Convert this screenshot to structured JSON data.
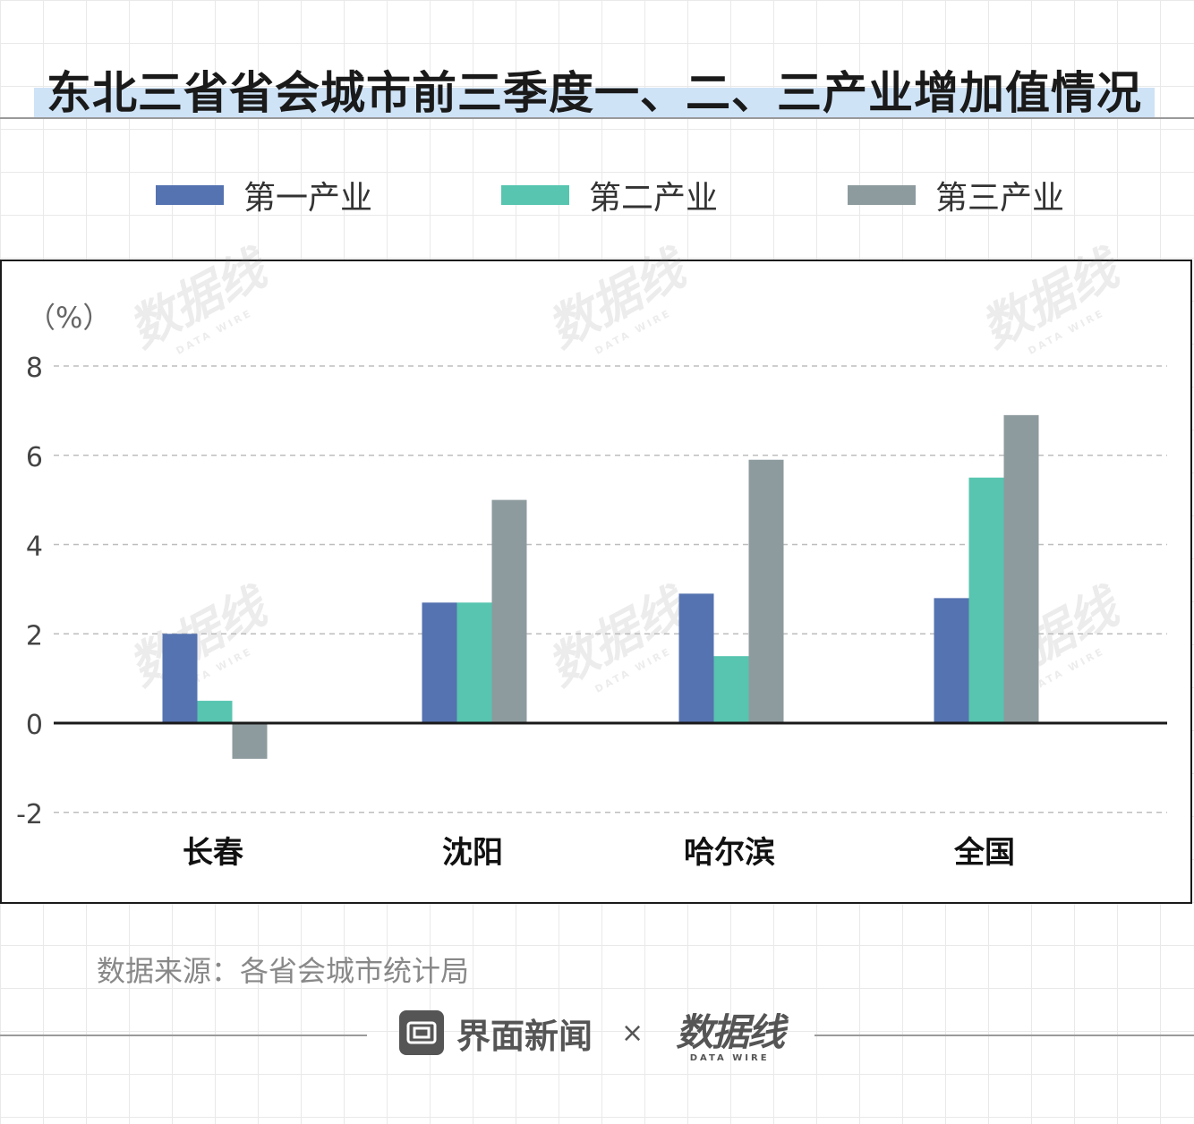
{
  "header": {
    "title": "东北三省省会城市前三季度一、二、三产业增加值情况"
  },
  "legend": [
    {
      "label": "第一产业",
      "color": "#5573b0"
    },
    {
      "label": "第二产业",
      "color": "#57c5b0"
    },
    {
      "label": "第三产业",
      "color": "#8d9b9e"
    }
  ],
  "chart_data": {
    "type": "bar",
    "title": "东北三省省会城市前三季度一、二、三产业增加值情况",
    "categories": [
      "长春",
      "沈阳",
      "哈尔滨",
      "全国"
    ],
    "series": [
      {
        "name": "第一产业",
        "values": [
          2.0,
          2.7,
          2.9,
          2.8
        ],
        "color": "#5573b0"
      },
      {
        "name": "第二产业",
        "values": [
          0.5,
          2.7,
          1.5,
          5.5
        ],
        "color": "#57c5b0"
      },
      {
        "name": "第三产业",
        "values": [
          -0.8,
          5.0,
          5.9,
          6.9
        ],
        "color": "#8d9b9e"
      }
    ],
    "unit": "（%）",
    "ylim": [
      -2,
      8
    ],
    "yticks": [
      "-2",
      "0",
      "2",
      "4",
      "6",
      "8"
    ],
    "grid": true,
    "legend_position": "top"
  },
  "source": "数据来源：各省会城市统计局",
  "footer": {
    "brand": "界面新闻",
    "separator": "×",
    "partner_mark": "数据线",
    "partner_sub": "DATA WIRE"
  },
  "watermark": {
    "mark": "数据线",
    "sub": "DATA WIRE"
  }
}
